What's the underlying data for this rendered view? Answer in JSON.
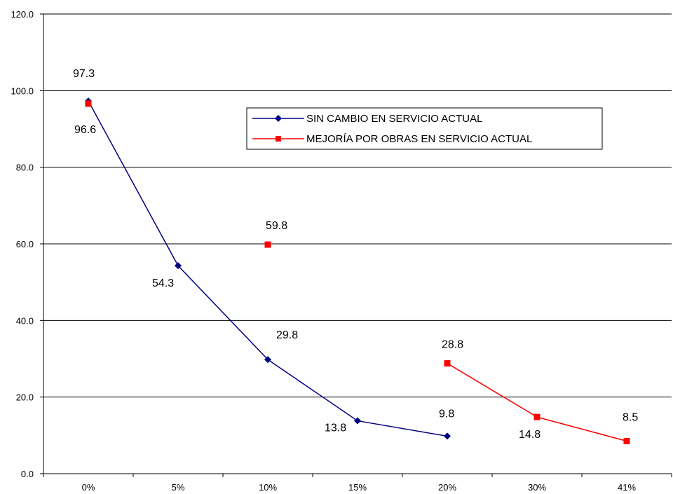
{
  "chart_data": {
    "type": "line",
    "categories": [
      "0%",
      "5%",
      "10%",
      "15%",
      "20%",
      "30%",
      "41%"
    ],
    "ylim": [
      0,
      120
    ],
    "yticks": [
      "0.0",
      "20.0",
      "40.0",
      "60.0",
      "80.0",
      "100.0",
      "120.0"
    ],
    "grid": true,
    "legend_position": "top-right",
    "series": [
      {
        "name": "SIN CAMBIO EN SERVICIO ACTUAL",
        "color": "#000080",
        "marker": "diamond",
        "values": [
          97.3,
          54.3,
          29.8,
          13.8,
          9.8,
          null,
          null
        ],
        "labels": [
          "97.3",
          "54.3",
          "29.8",
          "13.8",
          "9.8",
          null,
          null
        ]
      },
      {
        "name": "MEJORÍA POR OBRAS EN SERVICIO ACTUAL",
        "color": "#ff0000",
        "marker": "square",
        "values": [
          96.6,
          null,
          59.8,
          null,
          28.8,
          14.8,
          8.5
        ],
        "labels": [
          "96.6",
          null,
          "59.8",
          null,
          "28.8",
          "14.8",
          "8.5"
        ]
      }
    ]
  }
}
